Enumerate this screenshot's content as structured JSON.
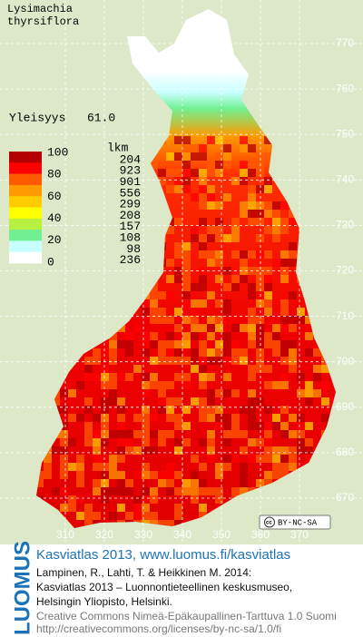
{
  "title": [
    "Lysimachia",
    "thyrsiflora"
  ],
  "frequency": {
    "label": "Yleisyys",
    "value": "61.0"
  },
  "legend": {
    "scale": [
      100,
      80,
      60,
      40,
      20,
      0
    ],
    "count_header": "lkm",
    "classes": [
      {
        "color": "#b40000",
        "count": 204
      },
      {
        "color": "#ff0000",
        "count": 923
      },
      {
        "color": "#ff5a00",
        "count": 901
      },
      {
        "color": "#ff9a00",
        "count": 556
      },
      {
        "color": "#ffcc00",
        "count": 299
      },
      {
        "color": "#ffff00",
        "count": 208
      },
      {
        "color": "#b8f040",
        "count": 157
      },
      {
        "color": "#70f090",
        "count": 108
      },
      {
        "color": "#c8ffff",
        "count": 98
      },
      {
        "color": "#ffffff",
        "count": 236
      }
    ]
  },
  "grid": {
    "northing": [
      770,
      760,
      750,
      740,
      730,
      720,
      710,
      700,
      690,
      680,
      670
    ],
    "easting": [
      310,
      320,
      330,
      340,
      350,
      360,
      370
    ]
  },
  "license_badge": "BY-NC-SA",
  "footer": {
    "brand": "LUOMUS",
    "title": "Kasviatlas 2013, www.luomus.fi/kasviatlas",
    "citation": [
      "Lampinen, R., Lahti, T. & Heikkinen M. 2014:",
      "Kasviatlas 2013 – Luonnontieteellinen keskusmuseo,",
      "Helsingin Yliopisto, Helsinki."
    ],
    "license": [
      "Creative Commons Nimeä-Epäkaupallinen-Tarttuva 1.0 Suomi",
      "http://creativecommons.org/licenses/by-nc-sa/1.0/fi"
    ]
  }
}
